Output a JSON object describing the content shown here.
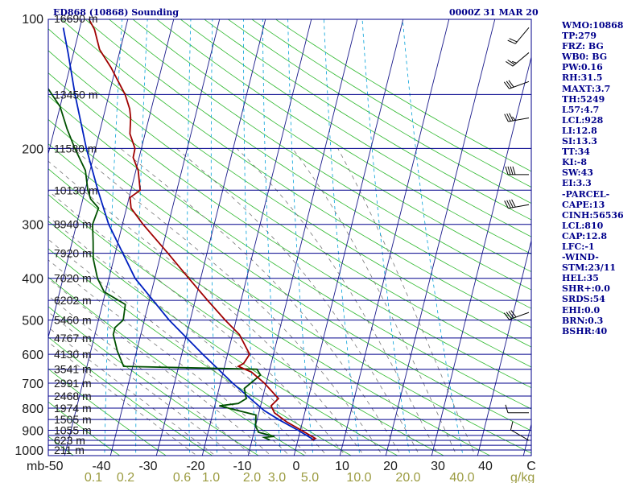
{
  "header": {
    "title": "ED868 (10868) Sounding",
    "time": "0000Z 31 MAR 20"
  },
  "colors": {
    "frame": "#00008b",
    "isobar": "#00008b",
    "isotherm": "#1c1c8c",
    "dry_adiabat": "#2db82d",
    "moist_adiabat": "#777777",
    "mixing_ratio": "#00a0d8",
    "temperature": "#a00000",
    "dewpoint": "#005000",
    "parcel": "#0020c0",
    "wind": "#000000",
    "label": "#1a1a1a",
    "mixing_ratio_label": "#9b9b40",
    "index_text": "#00008b"
  },
  "indices": [
    "WMO:10868",
    "TP:279",
    "FRZ: BG",
    "WB0: BG",
    "PW:0.16",
    "RH:31.5",
    "MAXT:3.7",
    "TH:5249",
    "L57:4.7",
    "LCL:928",
    "LI:12.8",
    "SI:13.3",
    "TT:34",
    "KI:-8",
    "SW:43",
    "EI:3.3",
    "-PARCEL-",
    "CAPE:13",
    "CINH:56536",
    "LCL:810",
    "CAP:12.8",
    "LFC:-1",
    "-WIND-",
    "STM:23/11",
    "HEL:35",
    "SHR+:0.0",
    "SRDS:54",
    "EHI:0.0",
    "BRN:0.3",
    "BSHR:40"
  ],
  "chart_data": {
    "type": "skew-t log-p",
    "title": "ED868 (10868) Sounding",
    "subtitle": "0000Z 31 MAR 20",
    "xlabel": "",
    "ylabel": "mb",
    "ylim": [
      1000,
      100
    ],
    "pressure_ticks": [
      "100",
      "200",
      "300",
      "400",
      "500",
      "600",
      "700",
      "800",
      "900",
      "1000"
    ],
    "pressure_unit_label": "mb",
    "temperature_ticks": [
      -50,
      -40,
      -30,
      -20,
      -10,
      0,
      10,
      20,
      30,
      40
    ],
    "temperature_axis_labels": [
      "-50",
      "-40",
      "-30",
      "-20",
      "-10",
      "0",
      "10",
      "20",
      "30",
      "40",
      "C"
    ],
    "mixing_ratio_ticks": [
      "0.1",
      "0.2",
      "0.6",
      "1.0",
      "2.0",
      "3.0",
      "5.0",
      "10.0",
      "20.0",
      "40.0"
    ],
    "mixing_ratio_unit": "g/kg",
    "isobars_mb": [
      100,
      150,
      200,
      250,
      300,
      350,
      400,
      450,
      500,
      550,
      600,
      650,
      700,
      750,
      800,
      850,
      900,
      925,
      950,
      975,
      1000
    ],
    "height_labels": [
      {
        "p": 100,
        "label": "16690 m"
      },
      {
        "p": 150,
        "label": "13450 m"
      },
      {
        "p": 200,
        "label": "11580 m"
      },
      {
        "p": 250,
        "label": "10130 m"
      },
      {
        "p": 300,
        "label": "8940 m"
      },
      {
        "p": 350,
        "label": "7920 m"
      },
      {
        "p": 400,
        "label": "7020 m"
      },
      {
        "p": 450,
        "label": "6202 m"
      },
      {
        "p": 500,
        "label": "5460 m"
      },
      {
        "p": 550,
        "label": "4767 m"
      },
      {
        "p": 600,
        "label": "4130 m"
      },
      {
        "p": 650,
        "label": "3541 m"
      },
      {
        "p": 700,
        "label": "2991 m"
      },
      {
        "p": 750,
        "label": "2468 m"
      },
      {
        "p": 800,
        "label": "1974 m"
      },
      {
        "p": 850,
        "label": "1505 m"
      },
      {
        "p": 900,
        "label": "1055 m"
      },
      {
        "p": 950,
        "label": "623 m"
      },
      {
        "p": 1000,
        "label": "211 m"
      }
    ],
    "temperature": [
      {
        "p": 948,
        "t": 3.0
      },
      {
        "p": 940,
        "t": 3.7
      },
      {
        "p": 900,
        "t": 0.2
      },
      {
        "p": 860,
        "t": -3.5
      },
      {
        "p": 820,
        "t": -6.6
      },
      {
        "p": 790,
        "t": -7.7
      },
      {
        "p": 760,
        "t": -6.5
      },
      {
        "p": 700,
        "t": -10.4
      },
      {
        "p": 660,
        "t": -13.8
      },
      {
        "p": 640,
        "t": -17.0
      },
      {
        "p": 630,
        "t": -16.0
      },
      {
        "p": 600,
        "t": -15.2
      },
      {
        "p": 540,
        "t": -18.5
      },
      {
        "p": 500,
        "t": -22.4
      },
      {
        "p": 450,
        "t": -27.3
      },
      {
        "p": 400,
        "t": -32.6
      },
      {
        "p": 350,
        "t": -38.5
      },
      {
        "p": 300,
        "t": -45.5
      },
      {
        "p": 275,
        "t": -49.0
      },
      {
        "p": 260,
        "t": -49.8
      },
      {
        "p": 250,
        "t": -48.0
      },
      {
        "p": 225,
        "t": -49.5
      },
      {
        "p": 210,
        "t": -51.3
      },
      {
        "p": 200,
        "t": -51.4
      },
      {
        "p": 185,
        "t": -53.3
      },
      {
        "p": 170,
        "t": -54.0
      },
      {
        "p": 162,
        "t": -54.7
      },
      {
        "p": 150,
        "t": -56.5
      },
      {
        "p": 130,
        "t": -61.0
      },
      {
        "p": 118,
        "t": -64.5
      },
      {
        "p": 106,
        "t": -66.7
      },
      {
        "p": 100,
        "t": -68.6
      }
    ],
    "dewpoint": [
      {
        "p": 948,
        "td": -6.1
      },
      {
        "p": 935,
        "td": -7.5
      },
      {
        "p": 930,
        "td": -5.3
      },
      {
        "p": 910,
        "td": -9.0
      },
      {
        "p": 880,
        "td": -10.0
      },
      {
        "p": 830,
        "td": -10.5
      },
      {
        "p": 790,
        "td": -19.0
      },
      {
        "p": 780,
        "td": -15.0
      },
      {
        "p": 760,
        "td": -13.5
      },
      {
        "p": 720,
        "td": -14.5
      },
      {
        "p": 670,
        "td": -11.7
      },
      {
        "p": 650,
        "td": -12.8
      },
      {
        "p": 640,
        "td": -42.0
      },
      {
        "p": 590,
        "td": -44.2
      },
      {
        "p": 540,
        "td": -46.0
      },
      {
        "p": 520,
        "td": -46.0
      },
      {
        "p": 500,
        "td": -44.6
      },
      {
        "p": 460,
        "td": -45.0
      },
      {
        "p": 430,
        "td": -50.3
      },
      {
        "p": 400,
        "td": -52.5
      },
      {
        "p": 360,
        "td": -54.5
      },
      {
        "p": 330,
        "td": -55.4
      },
      {
        "p": 300,
        "td": -56.5
      },
      {
        "p": 275,
        "td": -56.1
      },
      {
        "p": 262,
        "td": -58.3
      },
      {
        "p": 250,
        "td": -59.4
      },
      {
        "p": 225,
        "td": -61.0
      },
      {
        "p": 200,
        "td": -64.5
      },
      {
        "p": 180,
        "td": -67.3
      },
      {
        "p": 160,
        "td": -70.0
      },
      {
        "p": 140,
        "td": -75.0
      },
      {
        "p": 120,
        "td": -80.0
      },
      {
        "p": 100,
        "td": -84.0
      }
    ],
    "parcel_path": [
      {
        "p": 950,
        "t": 3.7
      },
      {
        "p": 900,
        "t": -0.5
      },
      {
        "p": 850,
        "t": -5.3
      },
      {
        "p": 810,
        "t": -9.0
      },
      {
        "p": 700,
        "t": -17.3
      },
      {
        "p": 600,
        "t": -25.4
      },
      {
        "p": 500,
        "t": -34.6
      },
      {
        "p": 400,
        "t": -44.3
      },
      {
        "p": 300,
        "t": -53.0
      },
      {
        "p": 250,
        "t": -57.2
      },
      {
        "p": 200,
        "t": -62.0
      },
      {
        "p": 150,
        "t": -67.4
      },
      {
        "p": 120,
        "t": -71.2
      },
      {
        "p": 105,
        "t": -73.6
      }
    ],
    "wind_barbs": [
      {
        "p": 950,
        "dir": 300,
        "spd": 10
      },
      {
        "p": 820,
        "dir": 270,
        "spd": 10
      },
      {
        "p": 480,
        "dir": 250,
        "spd": 40
      },
      {
        "p": 270,
        "dir": 260,
        "spd": 40
      },
      {
        "p": 230,
        "dir": 270,
        "spd": 40
      },
      {
        "p": 170,
        "dir": 260,
        "spd": 35
      },
      {
        "p": 140,
        "dir": 250,
        "spd": 30
      },
      {
        "p": 120,
        "dir": 230,
        "spd": 25
      },
      {
        "p": 105,
        "dir": 220,
        "spd": 20
      }
    ]
  }
}
